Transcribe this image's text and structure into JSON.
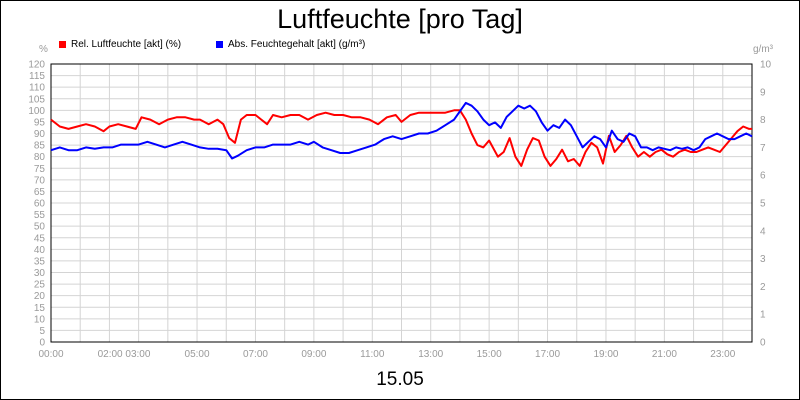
{
  "title": "Luftfeuchte [pro Tag]",
  "date_label": "15.05",
  "legend": [
    {
      "label": "Rel. Luftfeuchte [akt] (%)",
      "color": "#ff0000"
    },
    {
      "label": "Abs. Feuchtegehalt [akt] (g/m³)",
      "color": "#0000ff"
    }
  ],
  "units": {
    "left": "%",
    "right": "g/m³"
  },
  "chart_data": {
    "type": "line",
    "title": "Luftfeuchte [pro Tag]",
    "xlabel": "15.05",
    "x_ticks": [
      "00:00",
      "02:00 03:00",
      "05:00",
      "07:00",
      "09:00",
      "11:00",
      "13:00",
      "15:00",
      "17:00",
      "19:00",
      "21:00",
      "23:00"
    ],
    "x_tick_hours": [
      0,
      2.5,
      5,
      7,
      9,
      11,
      13,
      15,
      17,
      19,
      21,
      23
    ],
    "xlim": [
      0,
      24
    ],
    "grid": true,
    "legend_position": "top-left",
    "y_left": {
      "unit": "%",
      "lim": [
        0,
        120
      ],
      "ticks": [
        0,
        5,
        10,
        15,
        20,
        25,
        30,
        35,
        40,
        45,
        50,
        55,
        60,
        65,
        70,
        75,
        80,
        85,
        90,
        95,
        100,
        105,
        110,
        115,
        120
      ]
    },
    "y_right": {
      "unit": "g/m³",
      "lim": [
        0,
        10
      ],
      "ticks": [
        0,
        1,
        2,
        3,
        4,
        5,
        6,
        7,
        8,
        9,
        10
      ]
    },
    "series": [
      {
        "name": "Rel. Luftfeuchte [akt] (%)",
        "axis": "left",
        "color": "#ff0000",
        "points": [
          [
            0.0,
            96
          ],
          [
            0.3,
            93
          ],
          [
            0.6,
            92
          ],
          [
            0.9,
            93
          ],
          [
            1.2,
            94
          ],
          [
            1.5,
            93
          ],
          [
            1.8,
            91
          ],
          [
            2.0,
            93
          ],
          [
            2.3,
            94
          ],
          [
            2.6,
            93
          ],
          [
            2.9,
            92
          ],
          [
            3.1,
            97
          ],
          [
            3.4,
            96
          ],
          [
            3.7,
            94
          ],
          [
            4.0,
            96
          ],
          [
            4.3,
            97
          ],
          [
            4.6,
            97
          ],
          [
            4.9,
            96
          ],
          [
            5.1,
            96
          ],
          [
            5.4,
            94
          ],
          [
            5.7,
            96
          ],
          [
            5.9,
            94
          ],
          [
            6.1,
            88
          ],
          [
            6.3,
            86
          ],
          [
            6.5,
            96
          ],
          [
            6.7,
            98
          ],
          [
            7.0,
            98
          ],
          [
            7.2,
            96
          ],
          [
            7.4,
            94
          ],
          [
            7.6,
            98
          ],
          [
            7.9,
            97
          ],
          [
            8.2,
            98
          ],
          [
            8.5,
            98
          ],
          [
            8.8,
            96
          ],
          [
            9.1,
            98
          ],
          [
            9.4,
            99
          ],
          [
            9.7,
            98
          ],
          [
            10.0,
            98
          ],
          [
            10.3,
            97
          ],
          [
            10.6,
            97
          ],
          [
            10.9,
            96
          ],
          [
            11.2,
            94
          ],
          [
            11.5,
            97
          ],
          [
            11.8,
            98
          ],
          [
            12.0,
            95
          ],
          [
            12.3,
            98
          ],
          [
            12.6,
            99
          ],
          [
            12.9,
            99
          ],
          [
            13.2,
            99
          ],
          [
            13.5,
            99
          ],
          [
            13.8,
            100
          ],
          [
            14.0,
            100
          ],
          [
            14.2,
            96
          ],
          [
            14.4,
            90
          ],
          [
            14.6,
            85
          ],
          [
            14.8,
            84
          ],
          [
            15.0,
            87
          ],
          [
            15.3,
            80
          ],
          [
            15.5,
            82
          ],
          [
            15.7,
            88
          ],
          [
            15.9,
            80
          ],
          [
            16.1,
            76
          ],
          [
            16.3,
            83
          ],
          [
            16.5,
            88
          ],
          [
            16.7,
            87
          ],
          [
            16.9,
            80
          ],
          [
            17.1,
            76
          ],
          [
            17.3,
            79
          ],
          [
            17.5,
            83
          ],
          [
            17.7,
            78
          ],
          [
            17.9,
            79
          ],
          [
            18.1,
            76
          ],
          [
            18.3,
            82
          ],
          [
            18.5,
            86
          ],
          [
            18.7,
            84
          ],
          [
            18.9,
            77
          ],
          [
            19.1,
            89
          ],
          [
            19.3,
            82
          ],
          [
            19.5,
            85
          ],
          [
            19.7,
            89
          ],
          [
            19.9,
            84
          ],
          [
            20.1,
            80
          ],
          [
            20.3,
            82
          ],
          [
            20.5,
            80
          ],
          [
            20.7,
            82
          ],
          [
            20.9,
            83
          ],
          [
            21.1,
            81
          ],
          [
            21.3,
            80
          ],
          [
            21.5,
            82
          ],
          [
            21.7,
            83
          ],
          [
            21.9,
            82
          ],
          [
            22.1,
            82
          ],
          [
            22.3,
            83
          ],
          [
            22.5,
            84
          ],
          [
            22.7,
            83
          ],
          [
            22.9,
            82
          ],
          [
            23.1,
            85
          ],
          [
            23.3,
            88
          ],
          [
            23.5,
            91
          ],
          [
            23.7,
            93
          ],
          [
            23.9,
            92
          ],
          [
            24.0,
            92
          ]
        ]
      },
      {
        "name": "Abs. Feuchtegehalt [akt] (g/m³)",
        "axis": "right",
        "color": "#0000ff",
        "points": [
          [
            0.0,
            6.9
          ],
          [
            0.3,
            7.0
          ],
          [
            0.6,
            6.9
          ],
          [
            0.9,
            6.9
          ],
          [
            1.2,
            7.0
          ],
          [
            1.5,
            6.95
          ],
          [
            1.8,
            7.0
          ],
          [
            2.1,
            7.0
          ],
          [
            2.4,
            7.1
          ],
          [
            2.7,
            7.1
          ],
          [
            3.0,
            7.1
          ],
          [
            3.3,
            7.2
          ],
          [
            3.6,
            7.1
          ],
          [
            3.9,
            7.0
          ],
          [
            4.2,
            7.1
          ],
          [
            4.5,
            7.2
          ],
          [
            4.8,
            7.1
          ],
          [
            5.1,
            7.0
          ],
          [
            5.4,
            6.95
          ],
          [
            5.7,
            6.95
          ],
          [
            6.0,
            6.9
          ],
          [
            6.2,
            6.6
          ],
          [
            6.4,
            6.7
          ],
          [
            6.7,
            6.9
          ],
          [
            7.0,
            7.0
          ],
          [
            7.3,
            7.0
          ],
          [
            7.6,
            7.1
          ],
          [
            7.9,
            7.1
          ],
          [
            8.2,
            7.1
          ],
          [
            8.5,
            7.2
          ],
          [
            8.8,
            7.1
          ],
          [
            9.0,
            7.2
          ],
          [
            9.3,
            7.0
          ],
          [
            9.6,
            6.9
          ],
          [
            9.9,
            6.8
          ],
          [
            10.2,
            6.8
          ],
          [
            10.5,
            6.9
          ],
          [
            10.8,
            7.0
          ],
          [
            11.1,
            7.1
          ],
          [
            11.4,
            7.3
          ],
          [
            11.7,
            7.4
          ],
          [
            12.0,
            7.3
          ],
          [
            12.3,
            7.4
          ],
          [
            12.6,
            7.5
          ],
          [
            12.9,
            7.5
          ],
          [
            13.2,
            7.6
          ],
          [
            13.5,
            7.8
          ],
          [
            13.8,
            8.0
          ],
          [
            14.0,
            8.3
          ],
          [
            14.2,
            8.6
          ],
          [
            14.4,
            8.5
          ],
          [
            14.6,
            8.3
          ],
          [
            14.8,
            8.0
          ],
          [
            15.0,
            7.8
          ],
          [
            15.2,
            7.9
          ],
          [
            15.4,
            7.7
          ],
          [
            15.6,
            8.1
          ],
          [
            15.8,
            8.3
          ],
          [
            16.0,
            8.5
          ],
          [
            16.2,
            8.4
          ],
          [
            16.4,
            8.5
          ],
          [
            16.6,
            8.3
          ],
          [
            16.8,
            7.9
          ],
          [
            17.0,
            7.6
          ],
          [
            17.2,
            7.8
          ],
          [
            17.4,
            7.7
          ],
          [
            17.6,
            8.0
          ],
          [
            17.8,
            7.8
          ],
          [
            18.0,
            7.4
          ],
          [
            18.2,
            7.0
          ],
          [
            18.4,
            7.2
          ],
          [
            18.6,
            7.4
          ],
          [
            18.8,
            7.3
          ],
          [
            19.0,
            7.0
          ],
          [
            19.2,
            7.6
          ],
          [
            19.4,
            7.3
          ],
          [
            19.6,
            7.2
          ],
          [
            19.8,
            7.5
          ],
          [
            20.0,
            7.4
          ],
          [
            20.2,
            7.0
          ],
          [
            20.4,
            7.0
          ],
          [
            20.6,
            6.9
          ],
          [
            20.8,
            7.0
          ],
          [
            21.0,
            6.95
          ],
          [
            21.2,
            6.9
          ],
          [
            21.4,
            7.0
          ],
          [
            21.6,
            6.95
          ],
          [
            21.8,
            7.0
          ],
          [
            22.0,
            6.9
          ],
          [
            22.2,
            7.0
          ],
          [
            22.4,
            7.3
          ],
          [
            22.6,
            7.4
          ],
          [
            22.8,
            7.5
          ],
          [
            23.0,
            7.4
          ],
          [
            23.2,
            7.3
          ],
          [
            23.4,
            7.3
          ],
          [
            23.6,
            7.4
          ],
          [
            23.8,
            7.5
          ],
          [
            24.0,
            7.4
          ]
        ]
      }
    ]
  }
}
